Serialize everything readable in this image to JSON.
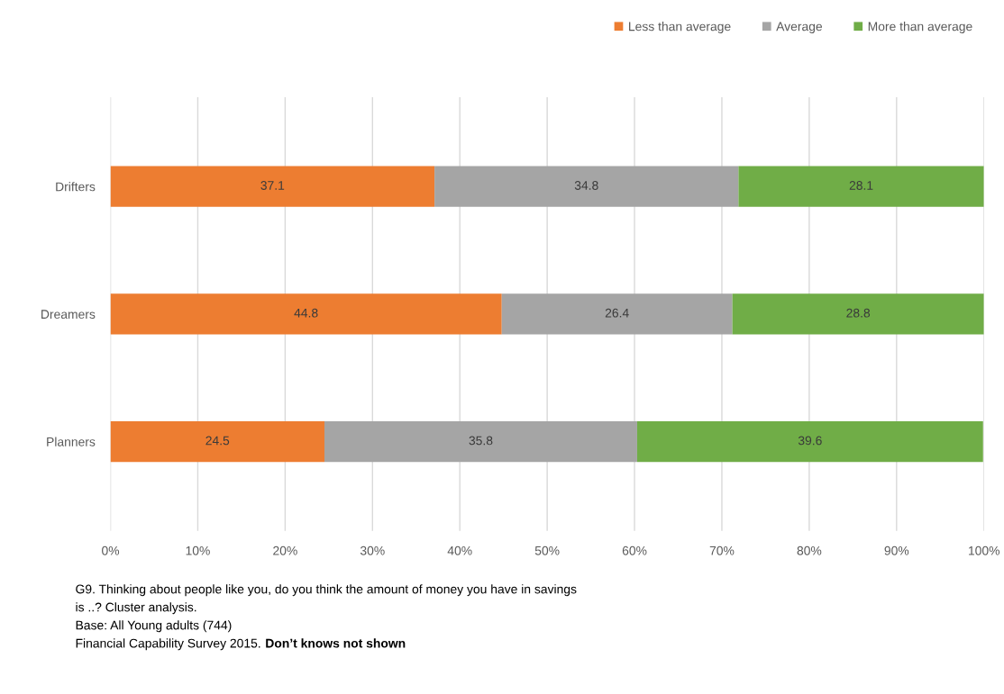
{
  "chart_data": {
    "type": "bar",
    "orientation": "horizontal",
    "stacked": true,
    "categories": [
      "Drifters",
      "Dreamers",
      "Planners"
    ],
    "series": [
      {
        "name": "Less than average",
        "color": "#ed7d31",
        "values": [
          37.1,
          44.8,
          24.5
        ]
      },
      {
        "name": "Average",
        "color": "#a5a5a5",
        "values": [
          34.8,
          26.4,
          35.8
        ]
      },
      {
        "name": "More than average",
        "color": "#70ad47",
        "values": [
          28.1,
          28.8,
          39.6
        ]
      }
    ],
    "xlim": [
      0,
      100
    ],
    "xticks": [
      {
        "value": 0,
        "label": "0%"
      },
      {
        "value": 10,
        "label": "10%"
      },
      {
        "value": 20,
        "label": "20%"
      },
      {
        "value": 30,
        "label": "30%"
      },
      {
        "value": 40,
        "label": "40%"
      },
      {
        "value": 50,
        "label": "50%"
      },
      {
        "value": 60,
        "label": "60%"
      },
      {
        "value": 70,
        "label": "70%"
      },
      {
        "value": 80,
        "label": "80%"
      },
      {
        "value": 90,
        "label": "90%"
      },
      {
        "value": 100,
        "label": "100%"
      }
    ],
    "data_labels": true,
    "grid": "x",
    "legend": "top right",
    "annotations": [
      "G9. Thinking about people like you, do you think the amount of money you have in savings",
      "is ..? Cluster analysis.",
      "Base: All Young adults (744)",
      "Financial Capability Survey 2015.",
      "Don’t knows not shown"
    ]
  }
}
